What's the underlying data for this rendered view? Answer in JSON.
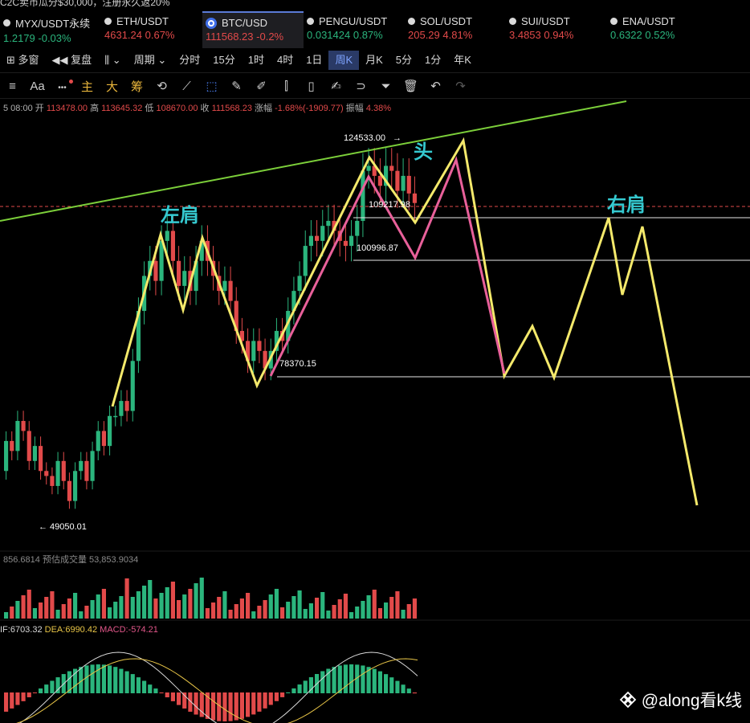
{
  "top_strip_text": "C2C卖币瓜分$30,000，注册永久返20%",
  "tickers": [
    {
      "name": "MYX/USDT永续",
      "price": "1.2179",
      "change": "-0.03%",
      "dir": "up",
      "icon": "dot-icon"
    },
    {
      "name": "ETH/USDT",
      "price": "4631.24",
      "change": "0.67%",
      "dir": "dn",
      "icon": "dot-icon"
    },
    {
      "name": "BTC/USD",
      "price": "111568.23",
      "change": "-0.2%",
      "dir": "dn",
      "icon": "coin-logo-icon",
      "active": true
    },
    {
      "name": "PENGU/USDT",
      "price": "0.031424",
      "change": "0.87%",
      "dir": "up",
      "icon": "dot-icon"
    },
    {
      "name": "SOL/USDT",
      "price": "205.29",
      "change": "4.81%",
      "dir": "dn",
      "icon": "dot-icon"
    },
    {
      "name": "SUI/USDT",
      "price": "3.4853",
      "change": "0.94%",
      "dir": "dn",
      "icon": "dot-icon"
    },
    {
      "name": "ENA/USDT",
      "price": "0.6322",
      "change": "0.52%",
      "dir": "up",
      "icon": "dot-icon"
    }
  ],
  "timeframe_bar": {
    "multi_window": "多窗",
    "restore": "复盘",
    "period": "周期",
    "items": [
      "分时",
      "15分",
      "1时",
      "4时",
      "1日",
      "周K",
      "月K",
      "5分",
      "1分",
      "年K"
    ],
    "selected": "周K"
  },
  "toolbar": {
    "font_label": "Aa",
    "more_label": "•••",
    "main_label": "主",
    "sub_label": "大",
    "chip_label": "筹",
    "icons": [
      "sync-icon",
      "ruler-icon",
      "select-box-icon",
      "pencil-icon",
      "brush-icon",
      "candlestick-icon",
      "clipboard-icon",
      "edit-note-icon",
      "magnet-icon",
      "filter-icon",
      "trash-icon",
      "undo-icon",
      "redo-icon"
    ]
  },
  "ohlc": {
    "time": "5 08:00",
    "open_label": "开",
    "open": "113478.00",
    "high_label": "高",
    "high": "113645.32",
    "low_label": "低",
    "low": "108670.00",
    "close_label": "收",
    "close": "111568.23",
    "change_label": "涨幅",
    "change": "-1.68%(-1909.77)",
    "amplitude_label": "振幅",
    "amplitude": "4.38%"
  },
  "annotations": {
    "left_shoulder": "左肩",
    "head": "头",
    "right_shoulder": "右肩",
    "high_price": "124533.00",
    "low_price": "49050.01",
    "level_1": "109217.98",
    "level_2": "100996.87",
    "level_3": "78370.15"
  },
  "volume": {
    "value": "856.6814",
    "estimate_label": "预估成交量",
    "estimate": "53,853.9034"
  },
  "macd": {
    "dif": "IF:6703.32",
    "dea": "DEA:6990.42",
    "macd": "MACD:-574.21"
  },
  "watermark": "@along看k线",
  "colors": {
    "up": "#2bb57d",
    "down": "#e24a4a",
    "pattern_yellow": "#f4e96b",
    "pattern_pink": "#e8609a",
    "trendline": "#7ccf3a",
    "label_cyan": "#35c9d0"
  },
  "chart_data": {
    "type": "candlestick",
    "period": "周K",
    "candles": [
      {
        "o": 58000,
        "c": 64000
      },
      {
        "o": 64000,
        "c": 62000
      },
      {
        "o": 62000,
        "c": 68000
      },
      {
        "o": 68000,
        "c": 66000
      },
      {
        "o": 66000,
        "c": 60000
      },
      {
        "o": 60000,
        "c": 63000
      },
      {
        "o": 63000,
        "c": 58000
      },
      {
        "o": 58000,
        "c": 57000
      },
      {
        "o": 57000,
        "c": 55000
      },
      {
        "o": 55000,
        "c": 60000
      },
      {
        "o": 60000,
        "c": 56000
      },
      {
        "o": 56000,
        "c": 52000
      },
      {
        "o": 52000,
        "c": 58000
      },
      {
        "o": 58000,
        "c": 60000
      },
      {
        "o": 60000,
        "c": 56000
      },
      {
        "o": 56000,
        "c": 62000
      },
      {
        "o": 62000,
        "c": 66000
      },
      {
        "o": 66000,
        "c": 63000
      },
      {
        "o": 63000,
        "c": 69000
      },
      {
        "o": 69000,
        "c": 69000
      },
      {
        "o": 69000,
        "c": 72000
      },
      {
        "o": 72000,
        "c": 70000
      },
      {
        "o": 70000,
        "c": 80000
      },
      {
        "o": 80000,
        "c": 90000
      },
      {
        "o": 90000,
        "c": 97000
      },
      {
        "o": 97000,
        "c": 100000
      },
      {
        "o": 100000,
        "c": 96000
      },
      {
        "o": 96000,
        "c": 104000
      },
      {
        "o": 104000,
        "c": 106000
      },
      {
        "o": 106000,
        "c": 100000
      },
      {
        "o": 100000,
        "c": 95000
      },
      {
        "o": 95000,
        "c": 98000
      },
      {
        "o": 98000,
        "c": 94000
      },
      {
        "o": 94000,
        "c": 100000
      },
      {
        "o": 100000,
        "c": 104000
      },
      {
        "o": 104000,
        "c": 100000
      },
      {
        "o": 100000,
        "c": 97000
      },
      {
        "o": 97000,
        "c": 94000
      },
      {
        "o": 94000,
        "c": 96000
      },
      {
        "o": 96000,
        "c": 92000
      },
      {
        "o": 92000,
        "c": 86000
      },
      {
        "o": 86000,
        "c": 84000
      },
      {
        "o": 84000,
        "c": 80000
      },
      {
        "o": 80000,
        "c": 84000
      },
      {
        "o": 84000,
        "c": 82000
      },
      {
        "o": 82000,
        "c": 78500
      },
      {
        "o": 78500,
        "c": 82000
      },
      {
        "o": 82000,
        "c": 86000
      },
      {
        "o": 86000,
        "c": 84000
      },
      {
        "o": 84000,
        "c": 90000
      },
      {
        "o": 90000,
        "c": 94000
      },
      {
        "o": 94000,
        "c": 97000
      },
      {
        "o": 97000,
        "c": 103000
      },
      {
        "o": 103000,
        "c": 105000
      },
      {
        "o": 105000,
        "c": 104000
      },
      {
        "o": 104000,
        "c": 107000
      },
      {
        "o": 107000,
        "c": 108000
      },
      {
        "o": 108000,
        "c": 106000
      },
      {
        "o": 106000,
        "c": 104000
      },
      {
        "o": 104000,
        "c": 103000
      },
      {
        "o": 103000,
        "c": 105000
      },
      {
        "o": 105000,
        "c": 108000
      },
      {
        "o": 108000,
        "c": 118000
      },
      {
        "o": 118000,
        "c": 119000
      },
      {
        "o": 119000,
        "c": 117000
      },
      {
        "o": 117000,
        "c": 115000
      },
      {
        "o": 115000,
        "c": 119000
      },
      {
        "o": 119000,
        "c": 118000
      },
      {
        "o": 118000,
        "c": 114000
      },
      {
        "o": 114000,
        "c": 117000
      },
      {
        "o": 117000,
        "c": 113478
      },
      {
        "o": 113478,
        "c": 111568.23
      }
    ],
    "price_range": [
      40000,
      130000
    ],
    "support_lines": [
      109217.98,
      100996.87,
      78370.15
    ]
  }
}
